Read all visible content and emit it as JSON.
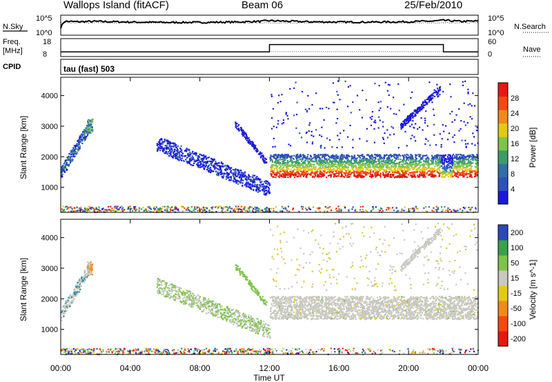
{
  "header": {
    "station": "Wallops Island (fitACF)",
    "beam": "Beam 06",
    "date": "25/Feb/2010"
  },
  "panels": {
    "noise": {
      "left_label": "N.Sky",
      "right_label": "N.Search",
      "tick_top": "10^5",
      "tick_bottom": "10^0"
    },
    "freq": {
      "left_label_1": "Freq.",
      "left_label_2": "[MHz]",
      "tick_top": "18",
      "tick_bottom": "8",
      "right_label": "Nave",
      "right_tick_top": "60",
      "right_tick_bottom": "0"
    },
    "cpid": {
      "label": "CPID",
      "value": "tau (fast) 503"
    }
  },
  "x_axis": {
    "label": "Time UT",
    "ticks": [
      "00:00",
      "04:00",
      "08:00",
      "12:00",
      "16:00",
      "20:00",
      "00:00"
    ]
  },
  "colors": {
    "power": [
      "#1919d8",
      "#2a52b8",
      "#2f6fa6",
      "#3d9a6a",
      "#7ec44b",
      "#e3c81a",
      "#f08a1a",
      "#f04a12",
      "#e31a10"
    ],
    "velocity": [
      "#e31a10",
      "#f04a12",
      "#f08a1a",
      "#e3c81a",
      "#c8c8c0",
      "#c8c8c0",
      "#7ec44b",
      "#3aa04a",
      "#2a8a9a",
      "#2a4ab8",
      "#1919a8"
    ]
  },
  "chart_data": [
    {
      "type": "line",
      "title": "N.Sky",
      "x": [
        0,
        0.2,
        1,
        2,
        3,
        4,
        6,
        8,
        10,
        11.5,
        12,
        14,
        16,
        18,
        20,
        21.5,
        22,
        23,
        24
      ],
      "series": [
        {
          "name": "N.Sky",
          "values": [
            1.8,
            3.6,
            3.5,
            3.6,
            3.5,
            3.4,
            3.3,
            3.3,
            3.4,
            3.6,
            3.8,
            3.5,
            3.4,
            3.4,
            3.5,
            3.7,
            3.9,
            3.6,
            3.7
          ]
        }
      ],
      "ylim": [
        0,
        5
      ]
    },
    {
      "type": "line",
      "title": "Freq. [MHz]",
      "x": [
        0,
        12,
        12,
        22,
        22,
        24
      ],
      "series": [
        {
          "name": "Freq.",
          "values": [
            10.2,
            10.2,
            15,
            15,
            10.2,
            10.2
          ]
        },
        {
          "name": "Nave",
          "values": [
            12,
            12,
            14,
            14,
            12,
            12
          ]
        }
      ],
      "ylim": [
        8,
        18
      ]
    },
    {
      "type": "heatmap",
      "title": "",
      "xlabel": "Time UT",
      "ylabel": "Slant Range [km]",
      "colorbar_label": "Power [dB]",
      "colorbar_ticks": [
        4,
        8,
        12,
        16,
        20,
        24,
        28
      ],
      "xlim": [
        0,
        24
      ],
      "ylim": [
        180,
        4600
      ],
      "yticks": [
        1000,
        2000,
        3000,
        4000
      ],
      "features": [
        {
          "name": "early echo",
          "t0": 0,
          "t1": 1.6,
          "range_lo": [
            1300,
            2900
          ],
          "power": 12
        },
        {
          "name": "descending band",
          "t0": 5.5,
          "t1": 12,
          "range_hi": [
            2700,
            1200
          ],
          "power": 8
        },
        {
          "name": "main band",
          "t0": 12,
          "t1": 24,
          "range": [
            1400,
            2100
          ],
          "peak_power": 28
        }
      ]
    },
    {
      "type": "heatmap",
      "title": "",
      "xlabel": "Time UT",
      "ylabel": "Slant Range [km]",
      "colorbar_label": "Velocity [m s^-1]",
      "colorbar_ticks": [
        200,
        100,
        50,
        15,
        -15,
        -50,
        -100,
        -200
      ],
      "xlim": [
        0,
        24
      ],
      "ylim": [
        180,
        4600
      ],
      "yticks": [
        1000,
        2000,
        3000,
        4000
      ],
      "features": [
        {
          "name": "descending band",
          "t0": 5.5,
          "t1": 12,
          "velocity": 50
        },
        {
          "name": "main band",
          "t0": 12,
          "t1": 24,
          "velocity": 0
        }
      ]
    }
  ]
}
